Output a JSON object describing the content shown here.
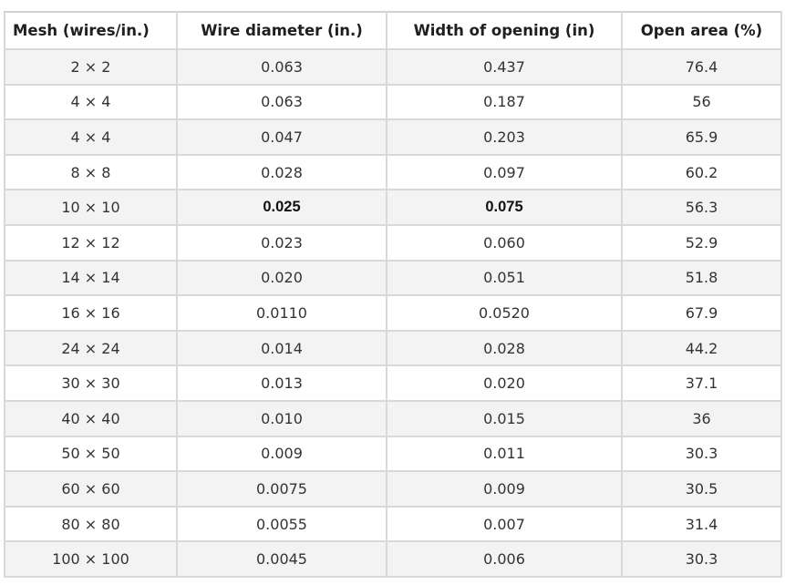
{
  "table": {
    "headers": [
      "Mesh (wires/in.)",
      "Wire diameter (in.)",
      "Width of opening (in)",
      "Open area (%)"
    ],
    "rows": [
      [
        "2 × 2",
        "0.063",
        "0.437",
        "76.4"
      ],
      [
        "4 × 4",
        "0.063",
        "0.187",
        "56"
      ],
      [
        "4 × 4",
        "0.047",
        "0.203",
        "65.9"
      ],
      [
        "8 × 8",
        "0.028",
        "0.097",
        "60.2"
      ],
      [
        "10 × 10",
        "0.025",
        "0.075",
        "56.3"
      ],
      [
        "12 × 12",
        "0.023",
        "0.060",
        "52.9"
      ],
      [
        "14 × 14",
        "0.020",
        "0.051",
        "51.8"
      ],
      [
        "16 × 16",
        "0.0110",
        "0.0520",
        "67.9"
      ],
      [
        "24 × 24",
        "0.014",
        "0.028",
        "44.2"
      ],
      [
        "30 × 30",
        "0.013",
        "0.020",
        "37.1"
      ],
      [
        "40 × 40",
        "0.010",
        "0.015",
        "36"
      ],
      [
        "50 × 50",
        "0.009",
        "0.011",
        "30.3"
      ],
      [
        "60 × 60",
        "0.0075",
        "0.009",
        "30.5"
      ],
      [
        "80 × 80",
        "0.0055",
        "0.007",
        "31.4"
      ],
      [
        "100 × 100",
        "0.0045",
        "0.006",
        "30.3"
      ]
    ]
  }
}
